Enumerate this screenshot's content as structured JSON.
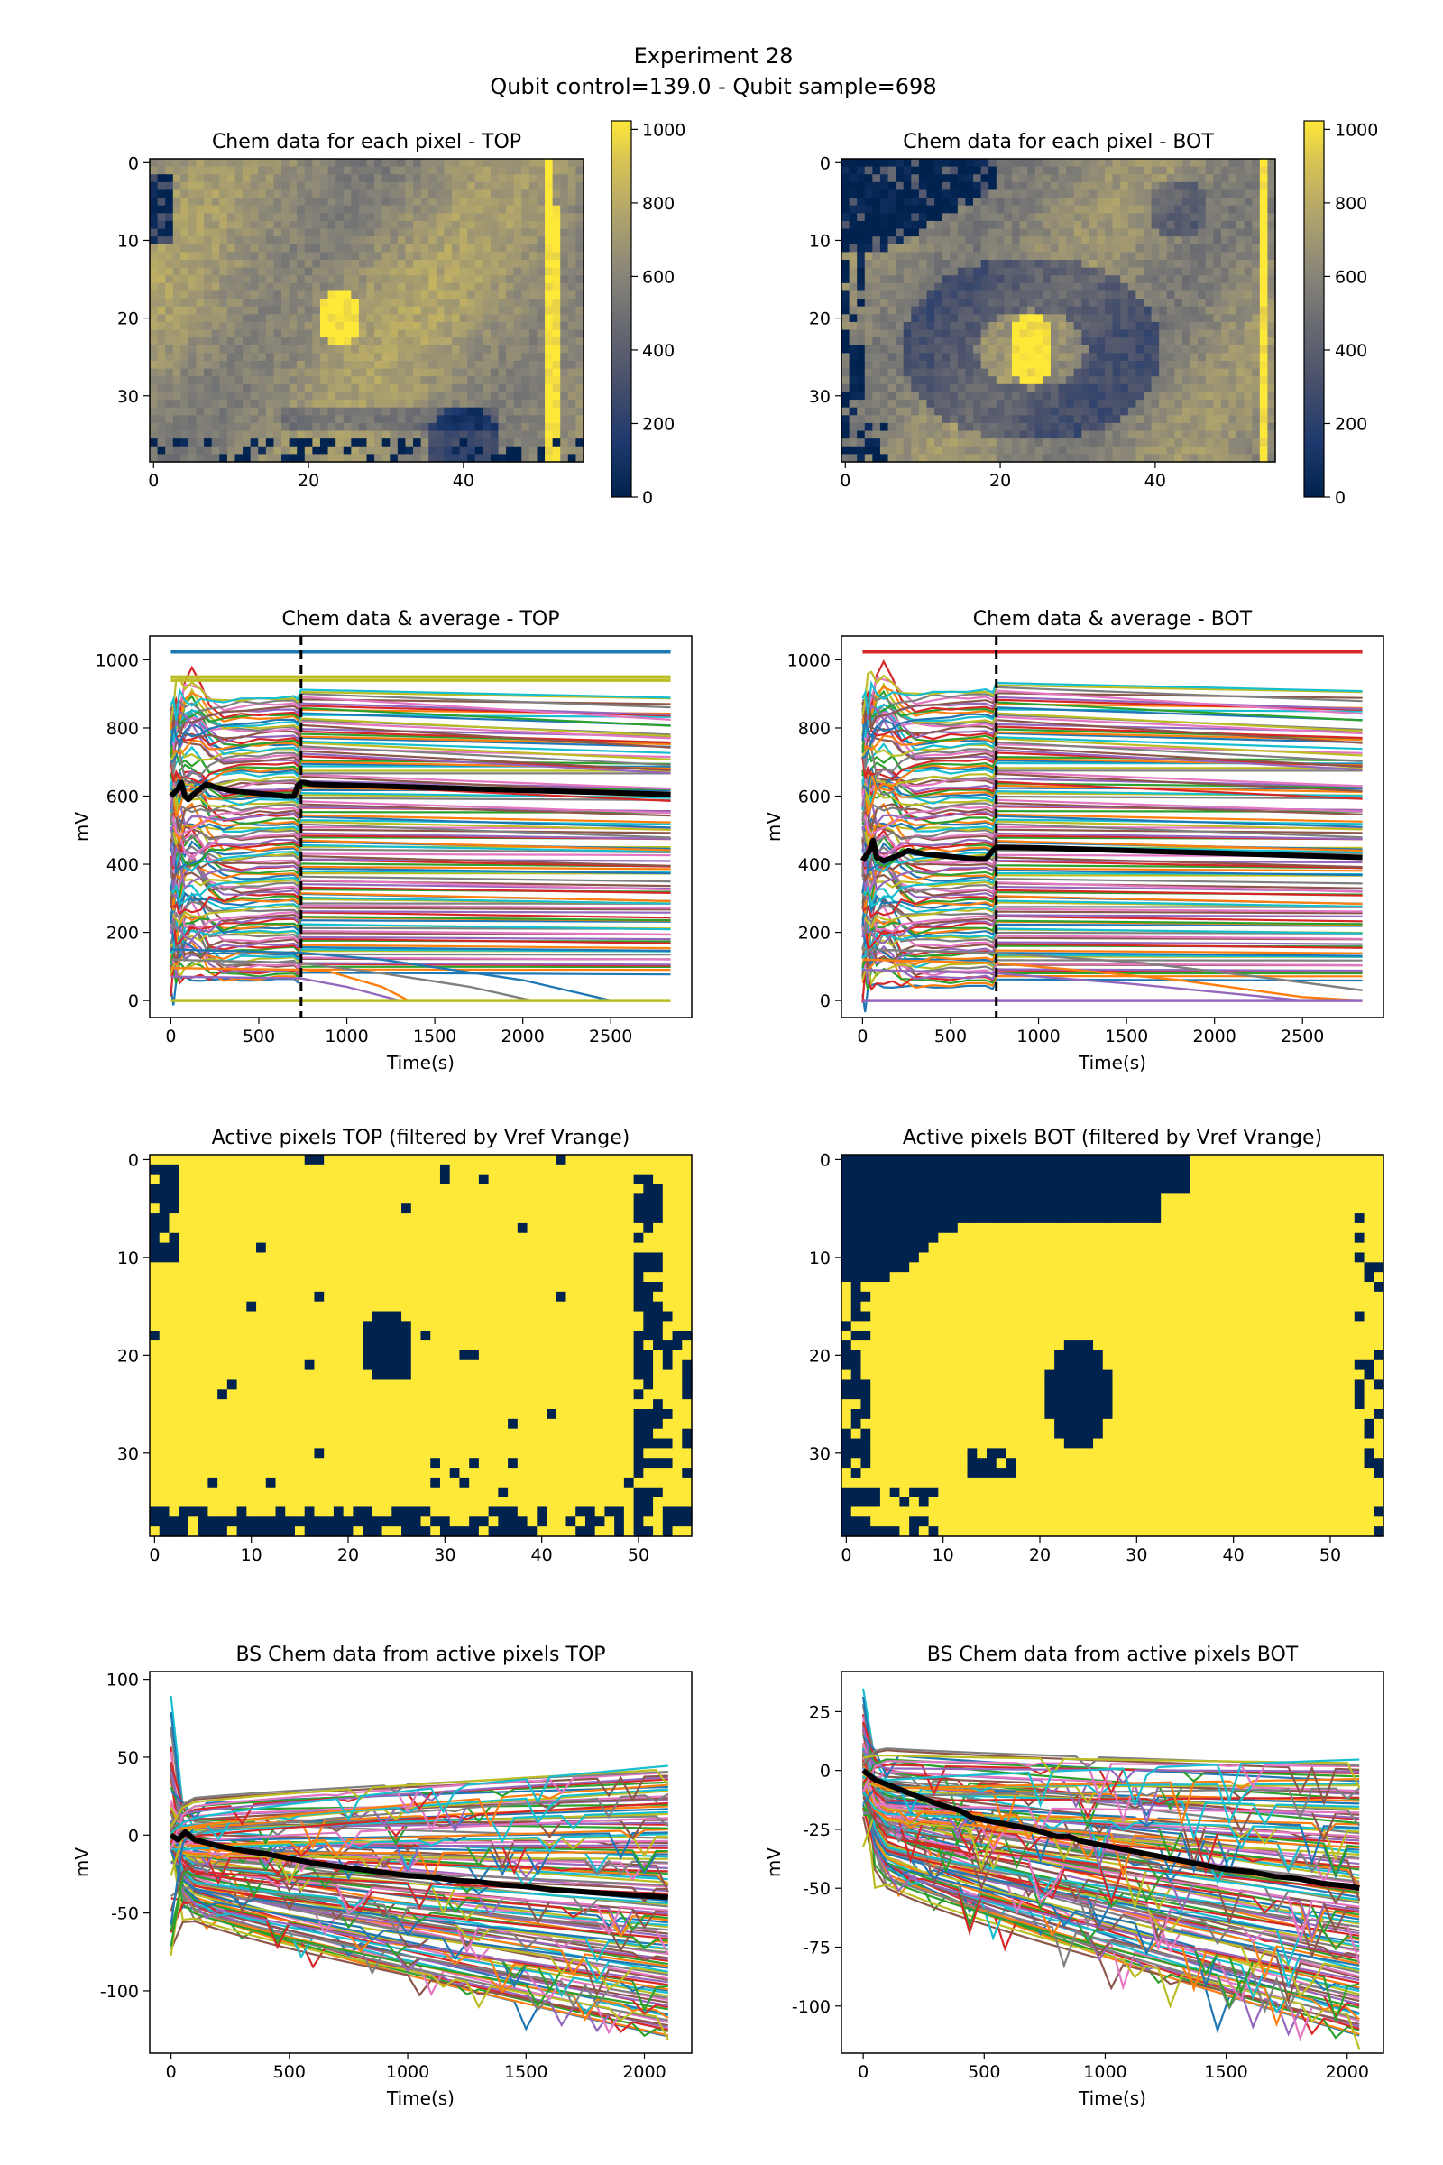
{
  "figure": {
    "suptitle_line1": "Experiment 28",
    "suptitle_line2": "Qubit control=139.0 - Qubit sample=698"
  },
  "colors": {
    "cividis_low": "#00224e",
    "cividis_mid": "#7c7b78",
    "cividis_high": "#fee838",
    "average_line": "#000000",
    "event_marker": "#000000",
    "series_cycle": [
      "#1f77b4",
      "#ff7f0e",
      "#2ca02c",
      "#d62728",
      "#9467bd",
      "#8c564b",
      "#e377c2",
      "#7f7f7f",
      "#bcbd22",
      "#17becf"
    ]
  },
  "chart_data": [
    {
      "id": "heat_top",
      "type": "heatmap",
      "title": "Chem data for each pixel - TOP",
      "colormap": "cividis",
      "xlim": [
        0,
        56
      ],
      "ylim": [
        39,
        0
      ],
      "xticks": [
        "0",
        "20",
        "40"
      ],
      "xtick_values": [
        0,
        20,
        40
      ],
      "yticks": [
        "0",
        "10",
        "20",
        "30"
      ],
      "ytick_values": [
        0,
        10,
        20,
        30
      ],
      "colorbar": {
        "ticks": [
          "0",
          "200",
          "400",
          "600",
          "800",
          "1000"
        ],
        "tick_values": [
          0,
          200,
          400,
          600,
          800,
          1000
        ],
        "range": [
          0,
          1023
        ]
      },
      "features": "mostly 600-800 mV field; saturated blob (~1023) centred near x=24, y=20; saturated vertical stripe near x=51; low-value (0) patches at left edge rows 1-10 and bottom rows 35-39; darker band near row 33"
    },
    {
      "id": "heat_bot",
      "type": "heatmap",
      "title": "Chem data for each pixel - BOT",
      "colormap": "cividis",
      "xlim": [
        0,
        56
      ],
      "ylim": [
        39,
        0
      ],
      "xticks": [
        "0",
        "20",
        "40"
      ],
      "xtick_values": [
        0,
        20,
        40
      ],
      "yticks": [
        "0",
        "10",
        "20",
        "30"
      ],
      "ytick_values": [
        0,
        10,
        20,
        30
      ],
      "colorbar": {
        "ticks": [
          "0",
          "200",
          "400",
          "600",
          "800",
          "1000"
        ],
        "tick_values": [
          0,
          200,
          400,
          600,
          800,
          1000
        ],
        "range": [
          0,
          1023
        ]
      },
      "features": "large 0-valued region top-left (rows 0-12) and left/bottom-left edge; darker ring around saturated blob centred near x=24, y=24; saturated stripe near x=54; remaining field 500-700 mV"
    },
    {
      "id": "lines_top",
      "type": "line",
      "title": "Chem data & average - TOP",
      "xlabel": "Time(s)",
      "ylabel": "mV",
      "xlim": [
        -120,
        2960
      ],
      "ylim": [
        -50,
        1070
      ],
      "xticks": [
        "0",
        "500",
        "1000",
        "1500",
        "2000",
        "2500"
      ],
      "xtick_values": [
        0,
        500,
        1000,
        1500,
        2000,
        2500
      ],
      "yticks": [
        "0",
        "200",
        "400",
        "600",
        "800",
        "1000"
      ],
      "ytick_values": [
        0,
        200,
        400,
        600,
        800,
        1000
      ],
      "vline_x": 740,
      "flat_series": [
        1023,
        950,
        940,
        0
      ],
      "pixel_series_range": [
        60,
        900
      ],
      "decaying_series": [
        {
          "x": [
            0,
            740,
            900,
            1200,
            1350
          ],
          "y": [
            95,
            90,
            85,
            40,
            0
          ]
        },
        {
          "x": [
            0,
            740,
            1000,
            1300
          ],
          "y": [
            70,
            65,
            40,
            0
          ]
        },
        {
          "x": [
            0,
            740,
            1200,
            1700,
            2050
          ],
          "y": [
            120,
            110,
            80,
            40,
            0
          ]
        },
        {
          "x": [
            0,
            740,
            1200,
            2000,
            2500
          ],
          "y": [
            150,
            140,
            120,
            60,
            0
          ]
        }
      ],
      "series": [
        {
          "name": "average",
          "x": [
            0,
            40,
            60,
            80,
            100,
            140,
            200,
            260,
            350,
            450,
            550,
            650,
            700,
            720,
            740,
            760,
            800,
            1000,
            1500,
            2000,
            2500,
            2840
          ],
          "y": [
            600,
            620,
            640,
            600,
            590,
            610,
            635,
            625,
            615,
            610,
            605,
            600,
            600,
            630,
            640,
            640,
            635,
            632,
            625,
            617,
            610,
            605
          ]
        }
      ]
    },
    {
      "id": "lines_bot",
      "type": "line",
      "title": "Chem data & average - BOT",
      "xlabel": "Time(s)",
      "ylabel": "mV",
      "xlim": [
        -120,
        2960
      ],
      "ylim": [
        -50,
        1070
      ],
      "xticks": [
        "0",
        "500",
        "1000",
        "1500",
        "2000",
        "2500"
      ],
      "xtick_values": [
        0,
        500,
        1000,
        1500,
        2000,
        2500
      ],
      "yticks": [
        "0",
        "200",
        "400",
        "600",
        "800",
        "1000"
      ],
      "ytick_values": [
        0,
        200,
        400,
        600,
        800,
        1000
      ],
      "vline_x": 760,
      "flat_series": [
        1023,
        0
      ],
      "pixel_series_range": [
        40,
        920
      ],
      "decaying_series": [
        {
          "x": [
            0,
            760,
            1200,
            1800,
            2500,
            2840
          ],
          "y": [
            120,
            110,
            90,
            60,
            10,
            0
          ]
        },
        {
          "x": [
            0,
            760,
            1500,
            2300,
            2500
          ],
          "y": [
            90,
            80,
            50,
            10,
            0
          ]
        },
        {
          "x": [
            0,
            760,
            1600,
            2400,
            2840
          ],
          "y": [
            150,
            140,
            110,
            60,
            30
          ]
        }
      ],
      "series": [
        {
          "name": "average",
          "x": [
            0,
            40,
            60,
            80,
            120,
            200,
            260,
            350,
            450,
            550,
            650,
            700,
            740,
            760,
            800,
            1000,
            1500,
            2000,
            2500,
            2840
          ],
          "y": [
            410,
            440,
            470,
            420,
            410,
            425,
            440,
            430,
            425,
            420,
            415,
            415,
            440,
            450,
            450,
            448,
            440,
            433,
            425,
            420
          ]
        }
      ]
    },
    {
      "id": "active_top",
      "type": "heatmap",
      "title": "Active pixels TOP (filtered by Vref Vrange)",
      "colormap": "cividis",
      "xlim": [
        0,
        56
      ],
      "ylim": [
        39,
        0
      ],
      "xticks": [
        "0",
        "10",
        "20",
        "30",
        "40",
        "50"
      ],
      "xtick_values": [
        0,
        10,
        20,
        30,
        40,
        50
      ],
      "yticks": [
        "0",
        "10",
        "20",
        "30"
      ],
      "ytick_values": [
        0,
        10,
        20,
        30
      ],
      "features": "binary mask: active (yellow) almost everywhere; inactive (navy) block at x=0-3 rows 0-10, blob centred x=24 y=19, right columns x=50-55 partially inactive, bottom rows 35-39 partially inactive, scattered single pixels"
    },
    {
      "id": "active_bot",
      "type": "heatmap",
      "title": "Active pixels BOT (filtered by Vref Vrange)",
      "colormap": "cividis",
      "xlim": [
        0,
        56
      ],
      "ylim": [
        39,
        0
      ],
      "xticks": [
        "0",
        "10",
        "20",
        "30",
        "40",
        "50"
      ],
      "xtick_values": [
        0,
        10,
        20,
        30,
        40,
        50
      ],
      "yticks": [
        "0",
        "10",
        "20",
        "30"
      ],
      "ytick_values": [
        0,
        10,
        20,
        30
      ],
      "features": "binary mask: inactive (navy) large region top-left rows 0-12 and left edge, blob centred x=24 y=25; active (yellow) elsewhere; few inactive pixels near right edge"
    },
    {
      "id": "bs_top",
      "type": "line",
      "title": "BS Chem data from active pixels TOP",
      "xlabel": "Time(s)",
      "ylabel": "mV",
      "xlim": [
        -90,
        2200
      ],
      "ylim": [
        -140,
        105
      ],
      "xticks": [
        "0",
        "500",
        "1000",
        "1500",
        "2000"
      ],
      "xtick_values": [
        0,
        500,
        1000,
        1500,
        2000
      ],
      "yticks": [
        "-100",
        "-50",
        "0",
        "50",
        "100"
      ],
      "ytick_values": [
        -100,
        -50,
        0,
        50,
        100
      ],
      "series_range": {
        "start": [
          -75,
          90
        ],
        "end": [
          -130,
          45
        ]
      },
      "series": [
        {
          "name": "average",
          "x": [
            0,
            30,
            60,
            100,
            200,
            300,
            400,
            500,
            600,
            700,
            800,
            900,
            1000,
            1100,
            1200,
            1300,
            1400,
            1500,
            1600,
            1700,
            1800,
            1900,
            2000,
            2100
          ],
          "y": [
            0,
            -3,
            2,
            -3,
            -7,
            -10,
            -12,
            -15,
            -18,
            -20,
            -22,
            -24,
            -26,
            -27,
            -29,
            -30,
            -32,
            -33,
            -35,
            -36,
            -37,
            -38,
            -39,
            -40
          ]
        }
      ]
    },
    {
      "id": "bs_bot",
      "type": "line",
      "title": "BS Chem data from active pixels BOT",
      "xlabel": "Time(s)",
      "ylabel": "mV",
      "xlim": [
        -90,
        2150
      ],
      "ylim": [
        -120,
        42
      ],
      "xticks": [
        "0",
        "500",
        "1000",
        "1500",
        "2000"
      ],
      "xtick_values": [
        0,
        500,
        1000,
        1500,
        2000
      ],
      "yticks": [
        "-100",
        "-75",
        "-50",
        "-25",
        "0",
        "25"
      ],
      "ytick_values": [
        -100,
        -75,
        -50,
        -25,
        0,
        25
      ],
      "series_range": {
        "start": [
          -20,
          35
        ],
        "end": [
          -113,
          5
        ]
      },
      "series": [
        {
          "name": "average",
          "x": [
            0,
            50,
            100,
            200,
            300,
            400,
            450,
            500,
            600,
            700,
            800,
            850,
            900,
            1000,
            1100,
            1200,
            1300,
            1400,
            1500,
            1600,
            1700,
            1800,
            1900,
            2000,
            2050
          ],
          "y": [
            0,
            -4,
            -6,
            -10,
            -14,
            -17,
            -20,
            -21,
            -23,
            -25,
            -28,
            -28,
            -30,
            -32,
            -34,
            -36,
            -38,
            -40,
            -42,
            -43,
            -45,
            -46,
            -48,
            -49,
            -50
          ]
        }
      ]
    }
  ]
}
